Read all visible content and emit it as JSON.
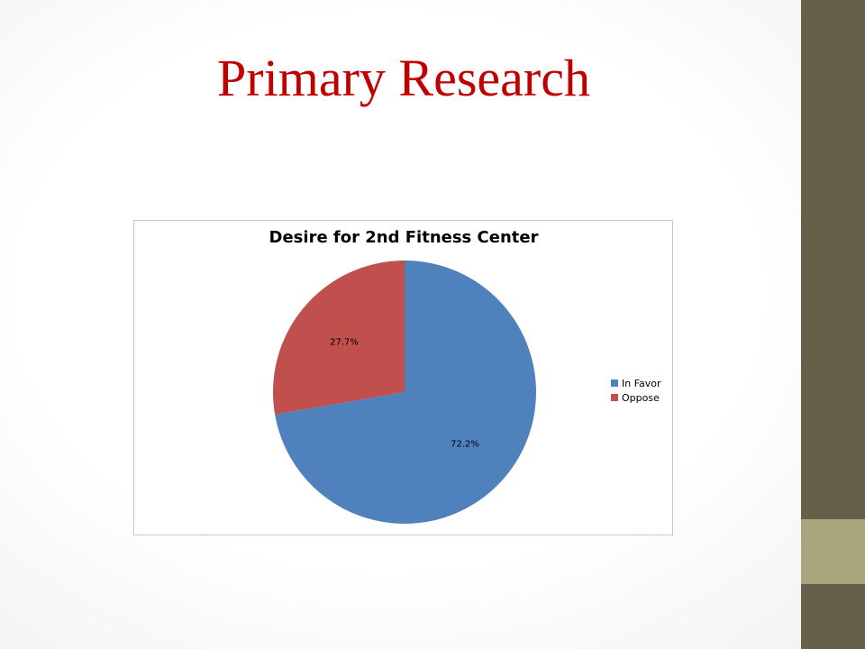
{
  "slide": {
    "title": "Primary Research"
  },
  "chart_data": {
    "type": "pie",
    "title": "Desire for 2nd Fitness Center",
    "categories": [
      "In Favor",
      "Oppose"
    ],
    "values": [
      72.2,
      27.7
    ],
    "data_labels": [
      "72.2%",
      "27.7%"
    ],
    "colors": [
      "#4f81bd",
      "#c0504d"
    ],
    "legend": "right",
    "start_angle": "top",
    "direction": "clockwise"
  }
}
